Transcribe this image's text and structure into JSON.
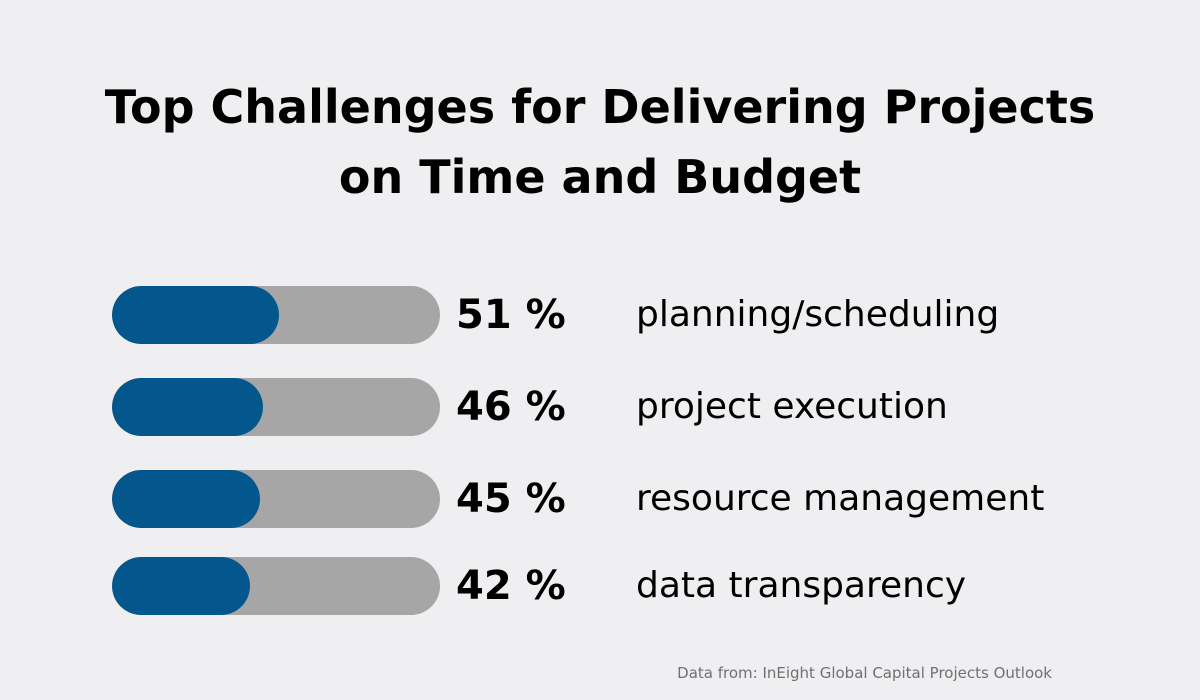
{
  "title": {
    "line1": "Top Challenges for Delivering Projects",
    "line2": "on Time and Budget"
  },
  "chart_data": {
    "type": "bar",
    "title": "Top Challenges for Delivering Projects on Time and Budget",
    "categories": [
      "planning/scheduling",
      "project execution",
      "resource management",
      "data transparency"
    ],
    "values": [
      51,
      46,
      45,
      42
    ],
    "value_labels": [
      "51 %",
      "46 %",
      "45 %",
      "42 %"
    ],
    "ylim": [
      0,
      100
    ],
    "grid": false,
    "orientation": "horizontal"
  },
  "source": "Data from: InEight Global Capital Projects Outlook",
  "colors": {
    "background": "#efeff1",
    "bar_fill": "#04578c",
    "bar_track": "#a6a6a6"
  }
}
